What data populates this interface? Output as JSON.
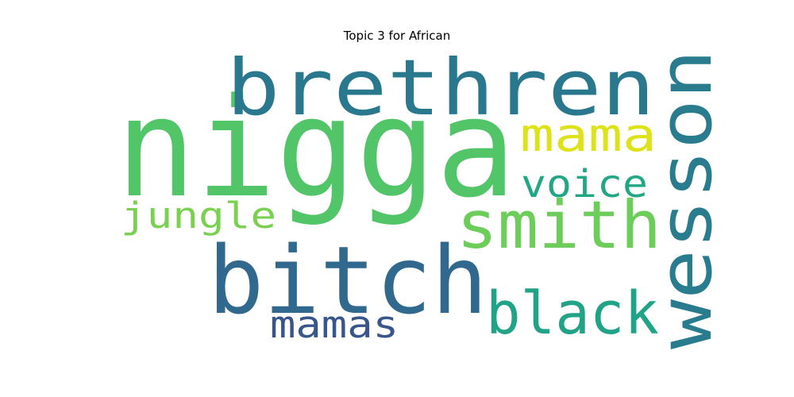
{
  "title": "Topic 3 for African",
  "words": [
    {
      "text": "nigga",
      "color": "#52c569"
    },
    {
      "text": "brethren",
      "color": "#2a788e"
    },
    {
      "text": "bitch",
      "color": "#31688e"
    },
    {
      "text": "wesson",
      "color": "#287c8e"
    },
    {
      "text": "smith",
      "color": "#6ccd5a"
    },
    {
      "text": "black",
      "color": "#20a386"
    },
    {
      "text": "mama",
      "color": "#dde318"
    },
    {
      "text": "voice",
      "color": "#22a785"
    },
    {
      "text": "jungle",
      "color": "#7ad151"
    },
    {
      "text": "mamas",
      "color": "#39568c"
    }
  ]
}
